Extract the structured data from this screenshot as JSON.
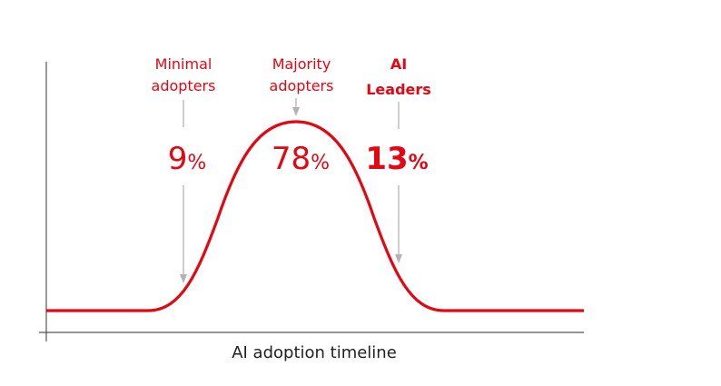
{
  "chart_data": {
    "type": "area",
    "title": "",
    "xlabel": "AI adoption timeline",
    "ylabel": "",
    "grid": false,
    "segments": [
      {
        "label_lines": [
          "Minimal",
          "adopters"
        ],
        "value": "9",
        "unit": "%",
        "emphasis": false
      },
      {
        "label_lines": [
          "Majority",
          "adopters"
        ],
        "value": "78",
        "unit": "%",
        "emphasis": false
      },
      {
        "label_lines": [
          "AI",
          "Leaders"
        ],
        "value": "13",
        "unit": "%",
        "emphasis": true
      }
    ],
    "colors": {
      "curve": "#e30613",
      "text": "#e30613",
      "axis": "#555555",
      "arrow": "#b3b3b3",
      "axis_title": "#222222"
    }
  }
}
